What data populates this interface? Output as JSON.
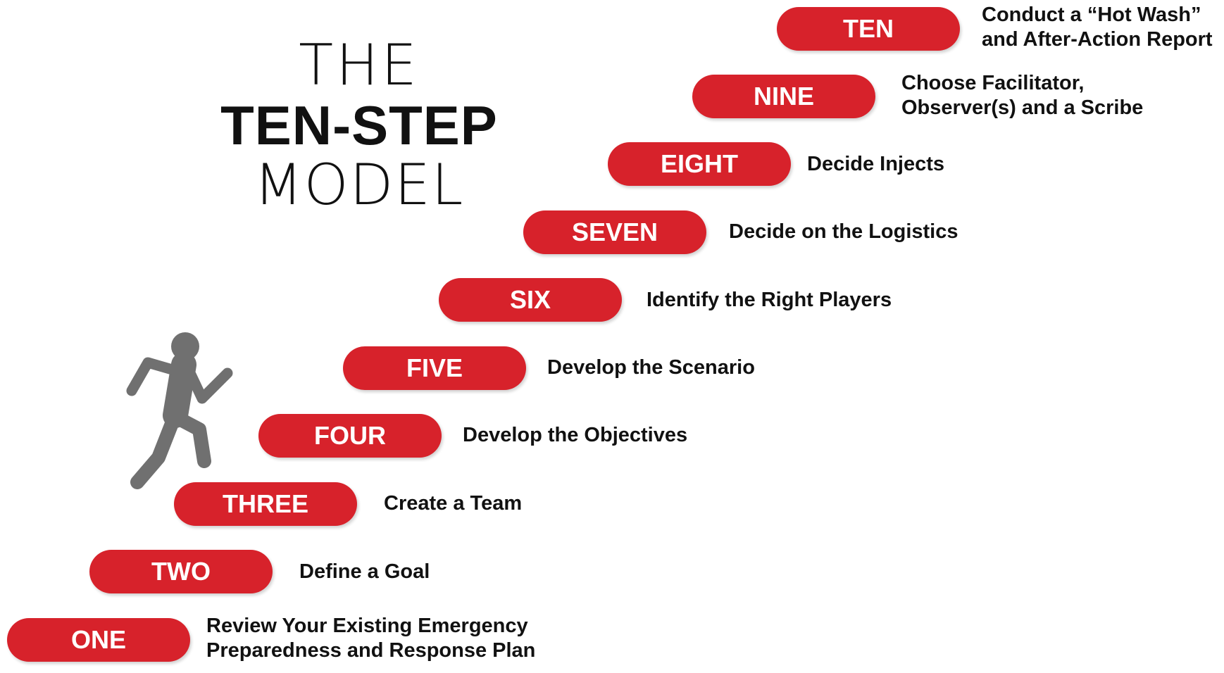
{
  "title": {
    "line1": "THE",
    "line2": "TEN-STEP",
    "line3": "MODEL"
  },
  "colors": {
    "pill": "#d7222b",
    "text": "#111111",
    "figure": "#707070"
  },
  "figure_icon": "person-climbing-stairs-icon",
  "steps": [
    {
      "number": "ONE",
      "label": "Review Your Existing Emergency\nPreparedness and Response Plan"
    },
    {
      "number": "TWO",
      "label": "Define a Goal"
    },
    {
      "number": "THREE",
      "label": "Create a Team"
    },
    {
      "number": "FOUR",
      "label": "Develop the Objectives"
    },
    {
      "number": "FIVE",
      "label": "Develop the Scenario"
    },
    {
      "number": "SIX",
      "label": "Identify the Right Players"
    },
    {
      "number": "SEVEN",
      "label": "Decide on the Logistics"
    },
    {
      "number": "EIGHT",
      "label": "Decide Injects"
    },
    {
      "number": "NINE",
      "label": "Choose Facilitator,\nObserver(s) and a Scribe"
    },
    {
      "number": "TEN",
      "label": "Conduct a “Hot Wash”\nand After-Action Report"
    }
  ]
}
